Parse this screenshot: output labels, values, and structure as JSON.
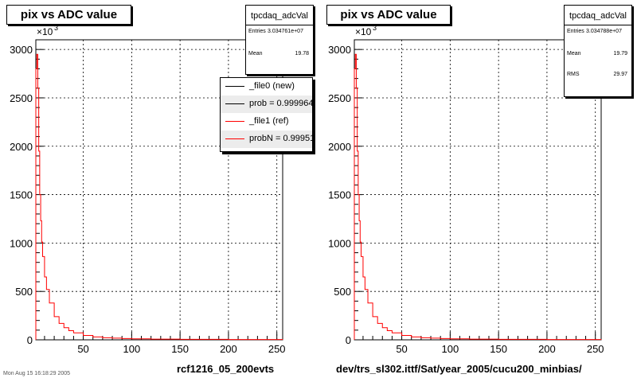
{
  "footer": "Mon Aug 15 16:18:29 2005",
  "chart_data": [
    {
      "type": "line",
      "title": "pix vs ADC value",
      "xlabel": "rcf1216_05_200evts",
      "ylabel": "",
      "y_exponent": "×10",
      "y_exponent_power": "3",
      "xlim": [
        1,
        256
      ],
      "ylim": [
        0,
        3100
      ],
      "x_ticks": [
        "50",
        "100",
        "150",
        "200",
        "250"
      ],
      "y_ticks": [
        "0",
        "500",
        "1000",
        "1500",
        "2000",
        "2500",
        "3000"
      ],
      "grid": true,
      "stats": {
        "name": "tpcdaq_adcVal",
        "entries_label": "Entries",
        "entries": "3.034761e+07",
        "mean_label": "Mean",
        "mean": "19.78"
      },
      "legend": {
        "position": "top-right",
        "entries": [
          "_file0 (new)",
          "prob = 0.999964",
          "_file1 (ref)",
          "probN = 0.99951"
        ],
        "colors": [
          "#000000",
          "#000000",
          "#ff0000",
          "#ff0000"
        ]
      },
      "series": [
        {
          "name": "_file1 (ref)",
          "color": "#ff0000",
          "x": [
            1,
            2,
            3,
            4,
            5,
            6,
            7,
            8,
            10,
            12,
            15,
            20,
            25,
            30,
            35,
            40,
            50,
            60,
            70,
            80,
            90,
            100,
            120,
            150,
            200,
            256
          ],
          "values": [
            2800,
            2950,
            2600,
            1950,
            1500,
            1230,
            1010,
            860,
            650,
            520,
            380,
            240,
            170,
            125,
            95,
            72,
            45,
            30,
            22,
            17,
            13,
            10,
            7,
            5,
            3,
            2
          ]
        }
      ]
    },
    {
      "type": "line",
      "title": "pix vs ADC value",
      "xlabel": "dev/trs_sl302.ittf/Sat/year_2005/cucu200_minbias/",
      "ylabel": "",
      "y_exponent": "×10",
      "y_exponent_power": "3",
      "xlim": [
        1,
        256
      ],
      "ylim": [
        0,
        3100
      ],
      "x_ticks": [
        "50",
        "100",
        "150",
        "200",
        "250"
      ],
      "y_ticks": [
        "0",
        "500",
        "1000",
        "1500",
        "2000",
        "2500",
        "3000"
      ],
      "grid": true,
      "stats": {
        "name": "tpcdaq_adcVal",
        "entries_label": "Entries",
        "entries": "3.034788e+07",
        "mean_label": "Mean",
        "mean": "19.79",
        "rms_label": "RMS",
        "rms": "29.97"
      },
      "series": [
        {
          "name": "",
          "color": "#ff0000",
          "x": [
            1,
            2,
            3,
            4,
            5,
            6,
            7,
            8,
            10,
            12,
            15,
            20,
            25,
            30,
            35,
            40,
            50,
            60,
            70,
            80,
            90,
            100,
            120,
            150,
            200,
            256
          ],
          "values": [
            2800,
            2950,
            2600,
            1950,
            1500,
            1230,
            1010,
            860,
            650,
            520,
            380,
            240,
            170,
            125,
            95,
            72,
            45,
            30,
            22,
            17,
            13,
            10,
            7,
            5,
            3,
            2
          ]
        }
      ]
    }
  ]
}
